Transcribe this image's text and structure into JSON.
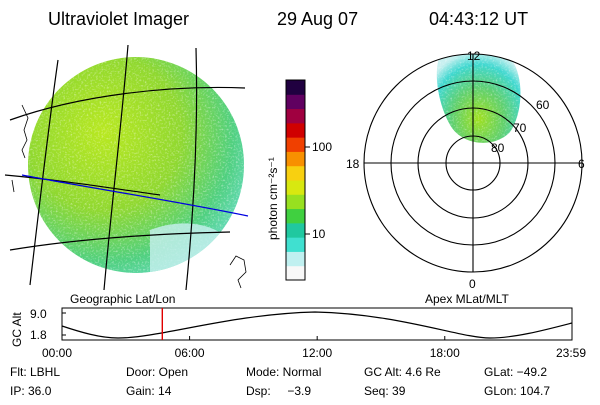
{
  "header": {
    "instrument": "Ultraviolet Imager",
    "date": "29 Aug 07",
    "time": "04:43:12 UT"
  },
  "geo_panel": {
    "label": "Geographic Lat/Lon"
  },
  "polar_panel": {
    "label": "Apex MLat/MLT",
    "mlt_labels": {
      "top": "12",
      "left": "18",
      "right": "6",
      "bottom": "0"
    },
    "lat_labels": [
      "60",
      "70",
      "80"
    ]
  },
  "colorbar": {
    "unit_label": "photon cm⁻²s⁻¹",
    "ticks": [
      "100",
      "10"
    ],
    "colors": [
      "#f8f8f8",
      "#c0f0f0",
      "#40e0d0",
      "#20c8a0",
      "#40d040",
      "#98e020",
      "#d8e810",
      "#f8d010",
      "#f89000",
      "#f04000",
      "#d00000",
      "#a00040",
      "#600060",
      "#200040"
    ]
  },
  "altitude_plot": {
    "ylabel": "GC Alt",
    "y_ticks": [
      "9.0",
      "1.8"
    ],
    "x_ticks": [
      "00:00",
      "06:00",
      "12:00",
      "18:00",
      "23:59"
    ],
    "x_minutes": [
      0,
      360,
      720,
      1080,
      1439
    ],
    "marker_minutes": 283,
    "marker_color": "#e00000"
  },
  "status": {
    "row1": [
      "Flt: LBHL",
      "Door: Open",
      "Mode: Normal",
      "GC Alt: 4.6 Re",
      "GLat: −49.2"
    ],
    "row2": [
      "IP: 36.0",
      "Gain: 14",
      "Dsp:     −3.9",
      "Seq: 39",
      "GLon: 104.7"
    ]
  }
}
